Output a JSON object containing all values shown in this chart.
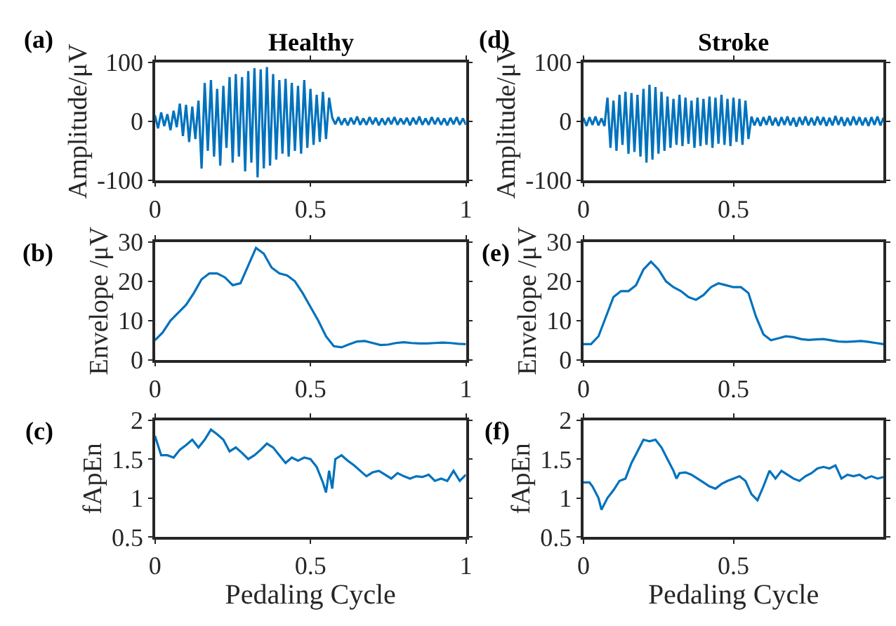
{
  "chart_data": [
    {
      "type": "line",
      "title": "Healthy",
      "ylabel": "Amplitude/μV",
      "annotations": [
        "(a)"
      ],
      "color": "#0072bd",
      "xlim": [
        0,
        1
      ],
      "xticks": [
        0,
        0.5,
        1
      ],
      "ylim": [
        -100,
        100
      ],
      "yticks": [
        -100,
        0,
        100
      ],
      "x": [
        0,
        0.01,
        0.02,
        0.03,
        0.04,
        0.05,
        0.06,
        0.07,
        0.08,
        0.09,
        0.1,
        0.11,
        0.12,
        0.13,
        0.14,
        0.15,
        0.16,
        0.17,
        0.18,
        0.19,
        0.2,
        0.21,
        0.22,
        0.23,
        0.24,
        0.25,
        0.26,
        0.27,
        0.28,
        0.29,
        0.3,
        0.31,
        0.32,
        0.33,
        0.34,
        0.35,
        0.36,
        0.37,
        0.38,
        0.39,
        0.4,
        0.41,
        0.42,
        0.43,
        0.44,
        0.45,
        0.46,
        0.47,
        0.48,
        0.49,
        0.5,
        0.51,
        0.52,
        0.53,
        0.54,
        0.55,
        0.56,
        0.57,
        0.58,
        0.59,
        0.6,
        0.61,
        0.62,
        0.63,
        0.64,
        0.65,
        0.66,
        0.67,
        0.68,
        0.69,
        0.7,
        0.71,
        0.72,
        0.73,
        0.74,
        0.75,
        0.76,
        0.77,
        0.78,
        0.79,
        0.8,
        0.81,
        0.82,
        0.83,
        0.84,
        0.85,
        0.86,
        0.87,
        0.88,
        0.89,
        0.9,
        0.91,
        0.92,
        0.93,
        0.94,
        0.95,
        0.96,
        0.97,
        0.98,
        0.99,
        1
      ],
      "values": [
        10,
        -12,
        15,
        -8,
        12,
        -15,
        18,
        -10,
        30,
        -25,
        28,
        -35,
        25,
        -30,
        35,
        -80,
        65,
        -50,
        70,
        -60,
        55,
        -75,
        60,
        -45,
        75,
        -70,
        80,
        -60,
        75,
        -85,
        85,
        -70,
        90,
        -95,
        88,
        -80,
        92,
        -75,
        80,
        -65,
        70,
        -55,
        72,
        -60,
        65,
        -50,
        60,
        -55,
        70,
        -45,
        55,
        -40,
        45,
        -35,
        50,
        -30,
        40,
        6,
        -5,
        7,
        -6,
        5,
        -7,
        6,
        -5,
        8,
        -6,
        5,
        -6,
        7,
        -5,
        6,
        -7,
        5,
        -6,
        6,
        -5,
        7,
        -6,
        5,
        -5,
        6,
        -7,
        6,
        -5,
        8,
        -6,
        5,
        -6,
        7,
        -5,
        6,
        -6,
        5,
        -7,
        6,
        -5,
        7,
        -6,
        5,
        -6
      ]
    },
    {
      "type": "line",
      "title": "Stroke",
      "ylabel": "Amplitude/μV",
      "annotations": [
        "(d)"
      ],
      "color": "#0072bd",
      "xlim": [
        0,
        1
      ],
      "xticks": [
        0,
        0.5
      ],
      "ylim": [
        -100,
        100
      ],
      "yticks": [
        -100,
        0,
        100
      ],
      "x": [
        0,
        0.01,
        0.02,
        0.03,
        0.04,
        0.05,
        0.06,
        0.07,
        0.08,
        0.09,
        0.1,
        0.11,
        0.12,
        0.13,
        0.14,
        0.15,
        0.16,
        0.17,
        0.18,
        0.19,
        0.2,
        0.21,
        0.22,
        0.23,
        0.24,
        0.25,
        0.26,
        0.27,
        0.28,
        0.29,
        0.3,
        0.31,
        0.32,
        0.33,
        0.34,
        0.35,
        0.36,
        0.37,
        0.38,
        0.39,
        0.4,
        0.41,
        0.42,
        0.43,
        0.44,
        0.45,
        0.46,
        0.47,
        0.48,
        0.49,
        0.5,
        0.51,
        0.52,
        0.53,
        0.54,
        0.55,
        0.56,
        0.57,
        0.58,
        0.59,
        0.6,
        0.61,
        0.62,
        0.63,
        0.64,
        0.65,
        0.66,
        0.67,
        0.68,
        0.69,
        0.7,
        0.71,
        0.72,
        0.73,
        0.74,
        0.75,
        0.76,
        0.77,
        0.78,
        0.79,
        0.8,
        0.81,
        0.82,
        0.83,
        0.84,
        0.85,
        0.86,
        0.87,
        0.88,
        0.89,
        0.9,
        0.91,
        0.92,
        0.93,
        0.94,
        0.95,
        0.96,
        0.97,
        0.98,
        0.99,
        1
      ],
      "values": [
        6,
        -8,
        7,
        -6,
        8,
        -7,
        5,
        -8,
        40,
        -45,
        35,
        -50,
        45,
        -40,
        50,
        -55,
        48,
        -52,
        45,
        -60,
        55,
        -70,
        62,
        -65,
        58,
        -55,
        50,
        -50,
        42,
        -45,
        38,
        -40,
        45,
        -42,
        40,
        -38,
        35,
        -45,
        40,
        -42,
        38,
        -40,
        42,
        -45,
        40,
        -38,
        45,
        -40,
        38,
        -42,
        40,
        -35,
        38,
        -40,
        35,
        -30,
        8,
        -7,
        6,
        -8,
        7,
        -6,
        9,
        -7,
        6,
        -8,
        7,
        -6,
        8,
        -7,
        6,
        -9,
        7,
        -6,
        8,
        -7,
        6,
        -7,
        8,
        -6,
        7,
        -8,
        6,
        -7,
        9,
        -6,
        7,
        -8,
        6,
        -7,
        8,
        -6,
        7,
        -7,
        6,
        -8,
        7,
        -6,
        8,
        -7,
        6
      ]
    },
    {
      "type": "line",
      "ylabel": "Envelope /μV",
      "annotations": [
        "(b)"
      ],
      "color": "#0072bd",
      "xlim": [
        0,
        1
      ],
      "xticks": [
        0,
        0.5,
        1
      ],
      "ylim": [
        0,
        30
      ],
      "yticks": [
        0,
        10,
        20,
        30
      ],
      "x": [
        0,
        0.025,
        0.05,
        0.075,
        0.1,
        0.125,
        0.15,
        0.175,
        0.2,
        0.225,
        0.25,
        0.275,
        0.3,
        0.325,
        0.35,
        0.375,
        0.4,
        0.425,
        0.45,
        0.475,
        0.5,
        0.525,
        0.55,
        0.575,
        0.6,
        0.625,
        0.65,
        0.675,
        0.7,
        0.725,
        0.75,
        0.775,
        0.8,
        0.825,
        0.85,
        0.875,
        0.9,
        0.925,
        0.95,
        0.975,
        1
      ],
      "values": [
        5,
        7,
        10,
        12,
        14,
        17,
        20.5,
        22,
        22,
        21,
        19,
        19.5,
        24,
        28.5,
        27,
        23.5,
        22,
        21.5,
        20,
        17,
        13.5,
        10,
        6,
        3.5,
        3.2,
        4,
        4.7,
        4.8,
        4.3,
        3.8,
        3.9,
        4.3,
        4.5,
        4.3,
        4.2,
        4.2,
        4.3,
        4.4,
        4.3,
        4.1,
        4
      ]
    },
    {
      "type": "line",
      "ylabel": "Envelope /μV",
      "annotations": [
        "(e)"
      ],
      "color": "#0072bd",
      "xlim": [
        0,
        1
      ],
      "xticks": [
        0,
        0.5
      ],
      "ylim": [
        0,
        30
      ],
      "yticks": [
        0,
        10,
        20,
        30
      ],
      "x": [
        0,
        0.025,
        0.05,
        0.075,
        0.1,
        0.125,
        0.15,
        0.175,
        0.2,
        0.225,
        0.25,
        0.275,
        0.3,
        0.325,
        0.35,
        0.375,
        0.4,
        0.425,
        0.45,
        0.475,
        0.5,
        0.525,
        0.55,
        0.575,
        0.6,
        0.625,
        0.65,
        0.675,
        0.7,
        0.725,
        0.75,
        0.775,
        0.8,
        0.825,
        0.85,
        0.875,
        0.9,
        0.925,
        0.95,
        0.975,
        1
      ],
      "values": [
        4,
        4,
        6,
        11,
        16,
        17.5,
        17.5,
        19,
        23,
        25,
        23,
        20,
        18.5,
        17.5,
        16,
        15.3,
        16.5,
        18.5,
        19.5,
        19,
        18.5,
        18.5,
        17,
        11,
        6.5,
        5,
        5.5,
        6,
        5.8,
        5.3,
        5.1,
        5.2,
        5.3,
        5,
        4.7,
        4.6,
        4.7,
        4.8,
        4.6,
        4.3,
        4
      ]
    },
    {
      "type": "line",
      "ylabel": "fApEn",
      "xlabel": "Pedaling Cycle",
      "annotations": [
        "(c)"
      ],
      "color": "#0072bd",
      "xlim": [
        0,
        1
      ],
      "xticks": [
        0,
        0.5,
        1
      ],
      "ylim": [
        0.5,
        2
      ],
      "yticks": [
        0.5,
        1,
        1.5,
        2
      ],
      "x": [
        0,
        0.02,
        0.04,
        0.06,
        0.08,
        0.1,
        0.12,
        0.14,
        0.16,
        0.18,
        0.2,
        0.22,
        0.24,
        0.26,
        0.28,
        0.3,
        0.32,
        0.34,
        0.36,
        0.38,
        0.4,
        0.42,
        0.44,
        0.46,
        0.48,
        0.5,
        0.52,
        0.54,
        0.55,
        0.56,
        0.57,
        0.58,
        0.6,
        0.62,
        0.64,
        0.66,
        0.68,
        0.7,
        0.72,
        0.74,
        0.76,
        0.78,
        0.8,
        0.82,
        0.84,
        0.86,
        0.88,
        0.9,
        0.92,
        0.94,
        0.96,
        0.98,
        1
      ],
      "values": [
        1.8,
        1.55,
        1.55,
        1.52,
        1.62,
        1.68,
        1.75,
        1.65,
        1.75,
        1.88,
        1.82,
        1.75,
        1.6,
        1.65,
        1.58,
        1.5,
        1.55,
        1.62,
        1.7,
        1.65,
        1.55,
        1.45,
        1.52,
        1.48,
        1.52,
        1.5,
        1.4,
        1.2,
        1.07,
        1.35,
        1.12,
        1.5,
        1.55,
        1.48,
        1.42,
        1.35,
        1.28,
        1.33,
        1.35,
        1.3,
        1.25,
        1.32,
        1.28,
        1.25,
        1.28,
        1.27,
        1.3,
        1.22,
        1.25,
        1.22,
        1.35,
        1.22,
        1.3
      ]
    },
    {
      "type": "line",
      "ylabel": "fApEn",
      "xlabel": "Pedaling Cycle",
      "annotations": [
        "(f)"
      ],
      "color": "#0072bd",
      "xlim": [
        0,
        1
      ],
      "xticks": [
        0,
        0.5
      ],
      "ylim": [
        0.5,
        2
      ],
      "yticks": [
        0.5,
        1,
        1.5,
        2
      ],
      "x": [
        0,
        0.02,
        0.03,
        0.05,
        0.06,
        0.08,
        0.1,
        0.12,
        0.14,
        0.16,
        0.18,
        0.2,
        0.22,
        0.24,
        0.26,
        0.28,
        0.3,
        0.31,
        0.32,
        0.34,
        0.36,
        0.38,
        0.4,
        0.42,
        0.44,
        0.46,
        0.48,
        0.5,
        0.52,
        0.54,
        0.56,
        0.58,
        0.6,
        0.62,
        0.64,
        0.66,
        0.68,
        0.7,
        0.72,
        0.74,
        0.76,
        0.78,
        0.8,
        0.82,
        0.84,
        0.86,
        0.88,
        0.9,
        0.92,
        0.94,
        0.96,
        0.98,
        1
      ],
      "values": [
        1.2,
        1.2,
        1.15,
        1.0,
        0.85,
        1.0,
        1.1,
        1.22,
        1.25,
        1.45,
        1.6,
        1.75,
        1.73,
        1.75,
        1.65,
        1.5,
        1.35,
        1.25,
        1.32,
        1.33,
        1.3,
        1.25,
        1.2,
        1.15,
        1.12,
        1.18,
        1.22,
        1.25,
        1.28,
        1.22,
        1.05,
        0.97,
        1.15,
        1.35,
        1.25,
        1.35,
        1.3,
        1.25,
        1.22,
        1.28,
        1.32,
        1.38,
        1.4,
        1.38,
        1.42,
        1.25,
        1.3,
        1.28,
        1.3,
        1.25,
        1.28,
        1.25,
        1.27
      ]
    }
  ]
}
